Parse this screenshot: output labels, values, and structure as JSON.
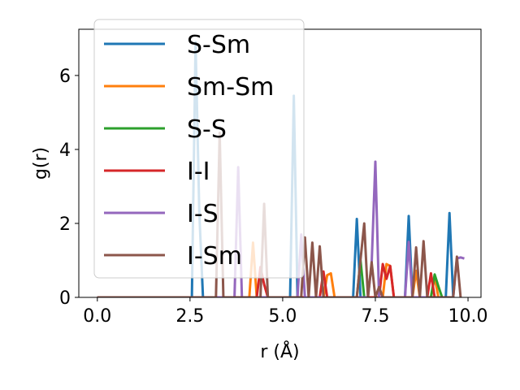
{
  "chart_data": {
    "type": "line",
    "xlabel": "r (Å)",
    "ylabel": "g(r)",
    "xlim": [
      -0.5,
      10.35
    ],
    "ylim": [
      0,
      7.25
    ],
    "xticks": [
      0.0,
      2.5,
      5.0,
      7.5,
      10.0
    ],
    "xtick_labels": [
      "0.0",
      "2.5",
      "5.0",
      "7.5",
      "10.0"
    ],
    "yticks": [
      0,
      2,
      4,
      6
    ],
    "ytick_labels": [
      "0",
      "2",
      "4",
      "6"
    ],
    "grid": false,
    "legend_position": "top-left",
    "series": [
      {
        "name": "S-Sm",
        "color": "#1f77b4",
        "x": [
          0,
          2.55,
          2.65,
          2.75,
          2.85,
          5.2,
          5.3,
          5.4,
          6.9,
          7.0,
          7.1,
          8.3,
          8.4,
          8.5,
          9.4,
          9.5,
          9.6
        ],
        "y": [
          0,
          0,
          6.9,
          2.3,
          0,
          0,
          5.45,
          0,
          0,
          2.12,
          0,
          0,
          2.2,
          0,
          0,
          2.28,
          0
        ]
      },
      {
        "name": "Sm-Sm",
        "color": "#ff7f0e",
        "x": [
          0,
          4.1,
          4.2,
          4.3,
          6.1,
          6.2,
          6.3,
          6.4,
          7.7,
          7.8,
          7.9,
          8.0,
          8.5,
          8.6,
          8.7,
          9.0,
          9.1,
          9.2
        ],
        "y": [
          0,
          0,
          1.48,
          0,
          0,
          0.6,
          0.65,
          0,
          0,
          0.9,
          0.85,
          0,
          0,
          0.72,
          0,
          0,
          0.55,
          0
        ]
      },
      {
        "name": "S-S",
        "color": "#2ca02c",
        "x": [
          0,
          7.0,
          7.1,
          7.2,
          9.0,
          9.1,
          9.2,
          9.3
        ],
        "y": [
          0,
          0,
          1.0,
          0,
          0,
          0.62,
          0.3,
          0
        ]
      },
      {
        "name": "I-I",
        "color": "#d62728",
        "x": [
          0,
          4.3,
          4.4,
          4.5,
          4.6,
          6.0,
          6.1,
          6.2,
          7.6,
          7.7,
          7.8,
          7.9,
          8.0,
          8.9,
          9.0,
          9.1
        ],
        "y": [
          0,
          0,
          0.82,
          0.35,
          0,
          0,
          0.7,
          0,
          0,
          0.9,
          0.5,
          0.85,
          0,
          0,
          0.65,
          0
        ]
      },
      {
        "name": "I-S",
        "color": "#9467bd",
        "x": [
          0,
          3.7,
          3.8,
          3.9,
          5.4,
          5.5,
          5.6,
          7.3,
          7.4,
          7.5,
          7.6,
          8.3,
          8.4,
          8.5,
          9.6,
          9.7,
          9.8,
          9.9
        ],
        "y": [
          0,
          0,
          3.52,
          0,
          0,
          1.7,
          0,
          0,
          0.9,
          3.67,
          0,
          0,
          1.5,
          0,
          0,
          1.05,
          1.08,
          1.05
        ]
      },
      {
        "name": "I-Sm",
        "color": "#8c564b",
        "x": [
          0,
          3.2,
          3.3,
          3.4,
          4.4,
          4.5,
          4.6,
          5.5,
          5.6,
          5.7,
          5.8,
          5.9,
          6.0,
          6.1,
          7.0,
          7.1,
          7.2,
          7.3,
          7.4,
          7.5,
          7.6,
          7.7,
          8.5,
          8.6,
          8.7,
          8.8,
          8.9,
          9.6,
          9.7,
          9.8
        ],
        "y": [
          0,
          0,
          4.45,
          0,
          0,
          2.53,
          0,
          0,
          1.62,
          0,
          1.48,
          0,
          1.38,
          0,
          0,
          1.02,
          2.0,
          0,
          0.95,
          0,
          0.28,
          0,
          0,
          1.35,
          0,
          1.52,
          0,
          0,
          1.1,
          0
        ]
      }
    ]
  }
}
